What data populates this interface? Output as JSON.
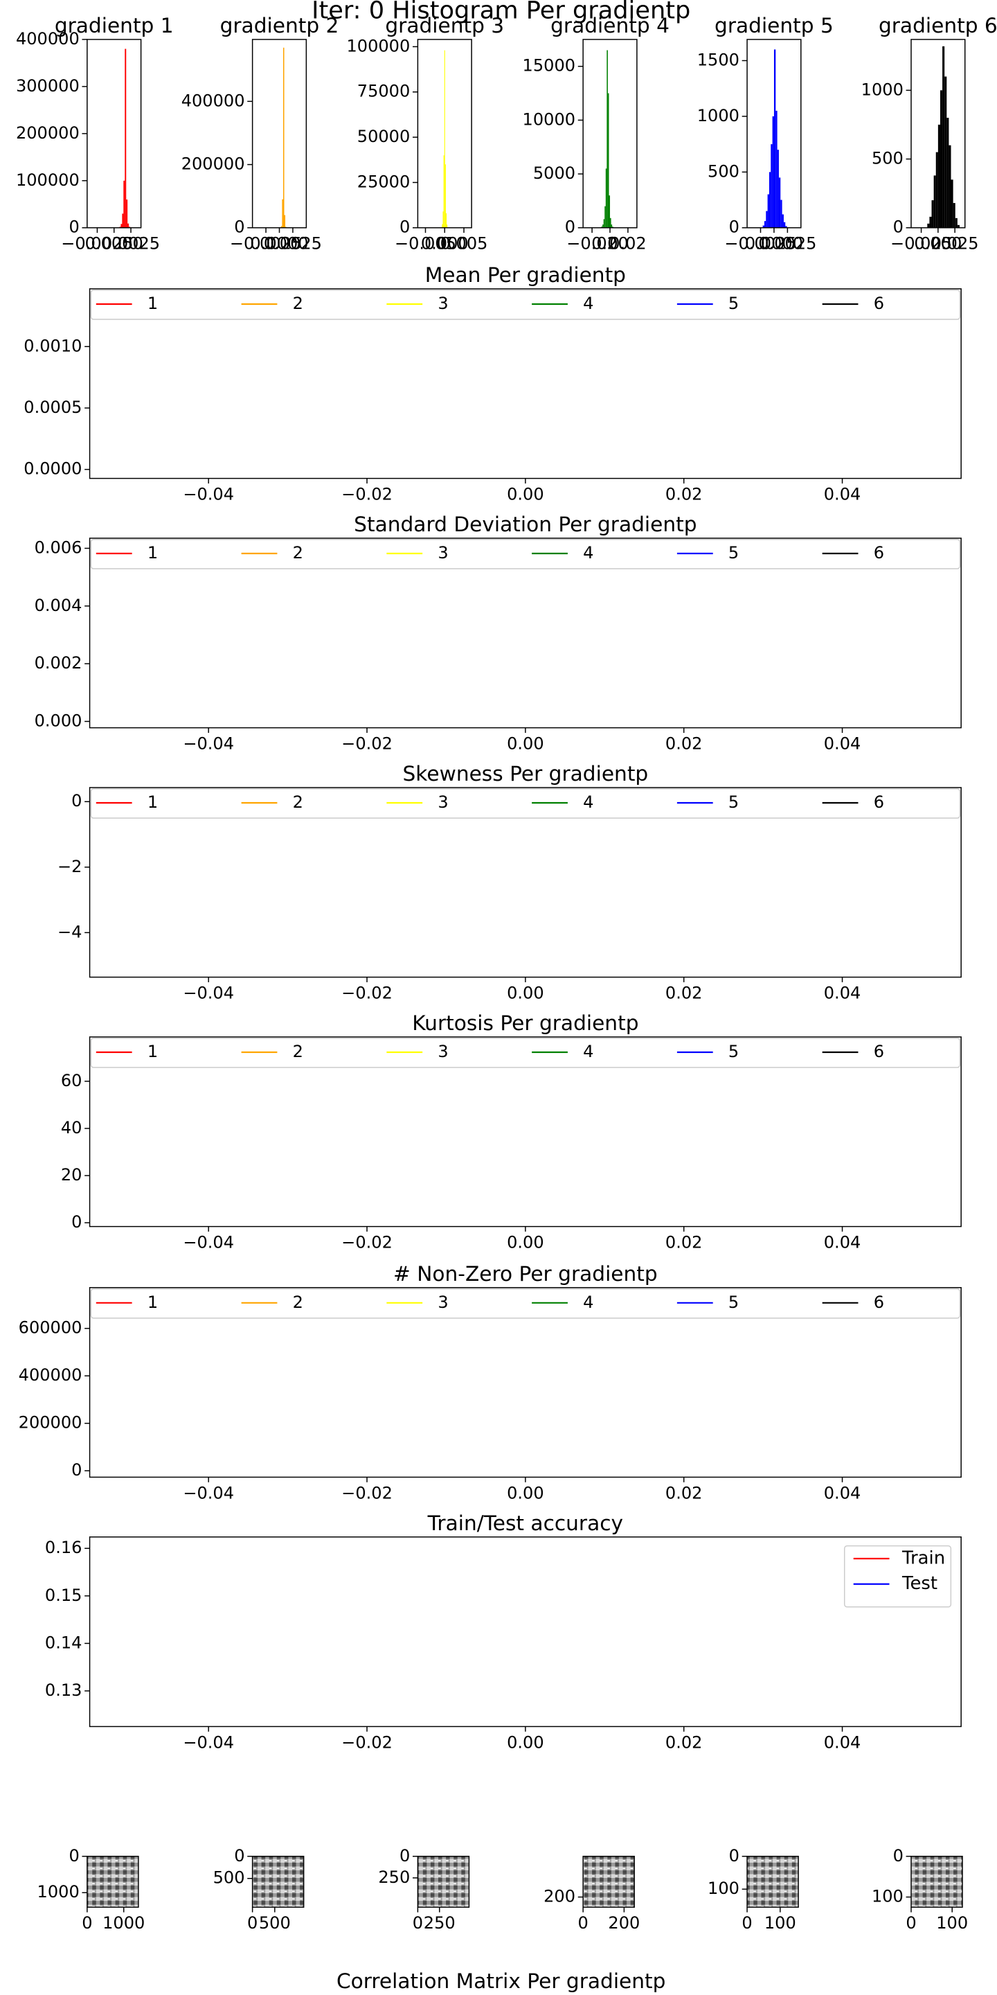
{
  "title": "Iter: 0 Histogram Per gradientp",
  "correlation_title": "Correlation Matrix Per gradientp",
  "chart_data": [
    {
      "type": "histogram",
      "title": "gradientp 1",
      "color": "#ff0000",
      "bins": [
        0,
        0.0002,
        0.0004,
        0.0006,
        0.0008,
        0.001,
        0.0012,
        0.0014,
        0.0016,
        0.0018,
        0.002,
        0.0022,
        0.0024,
        0.0026,
        0.0028,
        0.003
      ],
      "counts": [
        30,
        80,
        200,
        600,
        2000,
        8000,
        30000,
        100000,
        380000,
        60000,
        9000,
        2000,
        500,
        150,
        40
      ],
      "xlim": [
        -0.004,
        0.004
      ],
      "xticks": [
        {
          "value": -0.0025,
          "label": "−0.0025"
        },
        {
          "value": 0,
          "label": "0.0000"
        },
        {
          "value": 0.0025,
          "label": "0.0025"
        }
      ],
      "ylim": [
        0,
        400000
      ],
      "yticks": [
        0,
        100000,
        200000,
        300000,
        400000
      ]
    },
    {
      "type": "histogram",
      "title": "gradientp 2",
      "color": "#ffa500",
      "bins": [
        -0.0005,
        -0.0003,
        -0.0001,
        0.0001,
        0.0003,
        0.0005,
        0.0007,
        0.0009,
        0.0011,
        0.0013,
        0.0015,
        0.0017,
        0.0019,
        0.0021,
        0.0023,
        0.0025
      ],
      "counts": [
        20,
        60,
        200,
        800,
        5000,
        90000,
        570000,
        40000,
        3000,
        500,
        100,
        30,
        10,
        5,
        2
      ],
      "xlim": [
        -0.005,
        0.005
      ],
      "xticks": [
        {
          "value": -0.0025,
          "label": "−0.0025"
        },
        {
          "value": 0,
          "label": "0.0000"
        },
        {
          "value": 0.0025,
          "label": "0.0025"
        }
      ],
      "ylim": [
        0,
        596000
      ],
      "yticks": [
        0,
        200000,
        400000
      ]
    },
    {
      "type": "histogram",
      "title": "gradientp 3",
      "color": "#ffff00",
      "bins": [
        -0.0015,
        -0.0013,
        -0.0011,
        -0.0009,
        -0.0007,
        -0.0005,
        -0.0003,
        -0.0001,
        0.0001,
        0.0003,
        0.0005,
        0.0007,
        0.0009,
        0.0011,
        0.0013,
        0.0015
      ],
      "counts": [
        5,
        20,
        80,
        400,
        2000,
        9000,
        40000,
        98000,
        35000,
        8000,
        1800,
        350,
        70,
        15,
        4
      ],
      "xlim": [
        -0.007,
        0.007
      ],
      "xticks": [
        {
          "value": -0.005,
          "label": "−0.005"
        },
        {
          "value": 0,
          "label": "0.000"
        },
        {
          "value": 0.005,
          "label": "0.005"
        }
      ],
      "ylim": [
        0,
        104000
      ],
      "yticks": [
        0,
        25000,
        50000,
        75000,
        100000
      ]
    },
    {
      "type": "histogram",
      "title": "gradientp 4",
      "color": "#008000",
      "bins": [
        -0.012,
        -0.0108,
        -0.0096,
        -0.0084,
        -0.0072,
        -0.006,
        -0.0048,
        -0.0036,
        -0.0024,
        -0.0012,
        0,
        0.0012,
        0.0024,
        0.0036,
        0.0048,
        0.006
      ],
      "counts": [
        20,
        50,
        120,
        300,
        800,
        2000,
        5500,
        16500,
        12500,
        3000,
        900,
        300,
        100,
        40,
        10
      ],
      "xlim": [
        -0.03,
        0.03
      ],
      "xticks": [
        {
          "value": -0.02,
          "label": "−0.02"
        },
        {
          "value": 0,
          "label": "0.00"
        },
        {
          "value": 0.02,
          "label": "0.02"
        }
      ],
      "ylim": [
        0,
        17500
      ],
      "yticks": [
        0,
        5000,
        10000,
        15000
      ]
    },
    {
      "type": "histogram",
      "title": "gradientp 5",
      "color": "#0000ff",
      "bins": [
        -0.0021,
        -0.0018,
        -0.0015,
        -0.0012,
        -0.0009,
        -0.0006,
        -0.0003,
        0,
        0.0003,
        0.0006,
        0.0009,
        0.0012,
        0.0015,
        0.0018,
        0.0021,
        0.0024
      ],
      "counts": [
        20,
        60,
        150,
        300,
        500,
        750,
        1000,
        1600,
        1050,
        700,
        450,
        250,
        120,
        50,
        15
      ],
      "xlim": [
        -0.005,
        0.005
      ],
      "xticks": [
        {
          "value": -0.0025,
          "label": "−0.0025"
        },
        {
          "value": 0,
          "label": "0.0000"
        },
        {
          "value": 0.0025,
          "label": "0.0025"
        }
      ],
      "ylim": [
        0,
        1690
      ],
      "yticks": [
        0,
        500,
        1000,
        1500
      ]
    },
    {
      "type": "histogram",
      "title": "gradientp 6",
      "color": "#000000",
      "bins": [
        -0.016,
        -0.0128,
        -0.0096,
        -0.0064,
        -0.0032,
        0,
        0.0032,
        0.0064,
        0.0096,
        0.0128,
        0.016,
        0.0192,
        0.0224,
        0.0256,
        0.0288,
        0.032
      ],
      "counts": [
        30,
        80,
        200,
        380,
        550,
        750,
        1000,
        1320,
        1100,
        800,
        600,
        350,
        180,
        70,
        20
      ],
      "xlim": [
        -0.04,
        0.04
      ],
      "xticks": [
        {
          "value": -0.025,
          "label": "−0.025"
        },
        {
          "value": 0,
          "label": "0.000"
        },
        {
          "value": 0.025,
          "label": "0.025"
        }
      ],
      "ylim": [
        0,
        1370
      ],
      "yticks": [
        0,
        500,
        1000
      ]
    },
    {
      "type": "line",
      "title": "Mean Per gradientp",
      "legend": "top",
      "series": [
        {
          "name": "1",
          "color": "#ff0000"
        },
        {
          "name": "2",
          "color": "#ffa500"
        },
        {
          "name": "3",
          "color": "#ffff00"
        },
        {
          "name": "4",
          "color": "#008000"
        },
        {
          "name": "5",
          "color": "#0000ff"
        },
        {
          "name": "6",
          "color": "#000000"
        }
      ],
      "xlim": [
        -0.055,
        0.055
      ],
      "xticks": [
        {
          "value": -0.04,
          "label": "−0.04"
        },
        {
          "value": -0.02,
          "label": "−0.02"
        },
        {
          "value": 0,
          "label": "0.00"
        },
        {
          "value": 0.02,
          "label": "0.02"
        },
        {
          "value": 0.04,
          "label": "0.04"
        }
      ],
      "ylim": [
        -7.3e-05,
        0.00147
      ],
      "yticks": [
        {
          "value": 0,
          "label": "0.0000"
        },
        {
          "value": 0.0005,
          "label": "0.0005"
        },
        {
          "value": 0.001,
          "label": "0.0010"
        }
      ]
    },
    {
      "type": "line",
      "title": "Standard Deviation Per gradientp",
      "legend": "top",
      "series": [
        {
          "name": "1",
          "color": "#ff0000"
        },
        {
          "name": "2",
          "color": "#ffa500"
        },
        {
          "name": "3",
          "color": "#ffff00"
        },
        {
          "name": "4",
          "color": "#008000"
        },
        {
          "name": "5",
          "color": "#0000ff"
        },
        {
          "name": "6",
          "color": "#000000"
        }
      ],
      "xlim": [
        -0.055,
        0.055
      ],
      "xticks": [
        {
          "value": -0.04,
          "label": "−0.04"
        },
        {
          "value": -0.02,
          "label": "−0.02"
        },
        {
          "value": 0,
          "label": "0.00"
        },
        {
          "value": 0.02,
          "label": "0.02"
        },
        {
          "value": 0.04,
          "label": "0.04"
        }
      ],
      "ylim": [
        -0.00022,
        0.00635
      ],
      "yticks": [
        {
          "value": 0,
          "label": "0.000"
        },
        0.002,
        0.004,
        0.006
      ]
    },
    {
      "type": "line",
      "title": "Skewness Per gradientp",
      "legend": "top",
      "series": [
        {
          "name": "1",
          "color": "#ff0000"
        },
        {
          "name": "2",
          "color": "#ffa500"
        },
        {
          "name": "3",
          "color": "#ffff00"
        },
        {
          "name": "4",
          "color": "#008000"
        },
        {
          "name": "5",
          "color": "#0000ff"
        },
        {
          "name": "6",
          "color": "#000000"
        }
      ],
      "xlim": [
        -0.055,
        0.055
      ],
      "xticks": [
        {
          "value": -0.04,
          "label": "−0.04"
        },
        {
          "value": -0.02,
          "label": "−0.02"
        },
        {
          "value": 0,
          "label": "0.00"
        },
        {
          "value": 0.02,
          "label": "0.02"
        },
        {
          "value": 0.04,
          "label": "0.04"
        }
      ],
      "ylim": [
        -5.36,
        0.43
      ],
      "yticks": [
        0,
        {
          "value": -2,
          "label": "−2"
        },
        {
          "value": -4,
          "label": "−4"
        }
      ]
    },
    {
      "type": "line",
      "title": "Kurtosis Per gradientp",
      "legend": "top",
      "series": [
        {
          "name": "1",
          "color": "#ff0000"
        },
        {
          "name": "2",
          "color": "#ffa500"
        },
        {
          "name": "3",
          "color": "#ffff00"
        },
        {
          "name": "4",
          "color": "#008000"
        },
        {
          "name": "5",
          "color": "#0000ff"
        },
        {
          "name": "6",
          "color": "#000000"
        }
      ],
      "xlim": [
        -0.055,
        0.055
      ],
      "xticks": [
        {
          "value": -0.04,
          "label": "−0.04"
        },
        {
          "value": -0.02,
          "label": "−0.02"
        },
        {
          "value": 0,
          "label": "0.00"
        },
        {
          "value": 0.02,
          "label": "0.02"
        },
        {
          "value": 0.04,
          "label": "0.04"
        }
      ],
      "ylim": [
        -1.6,
        78.8
      ],
      "yticks": [
        0,
        20,
        40,
        60
      ]
    },
    {
      "type": "line",
      "title": "# Non-Zero Per gradientp",
      "legend": "top",
      "series": [
        {
          "name": "1",
          "color": "#ff0000"
        },
        {
          "name": "2",
          "color": "#ffa500"
        },
        {
          "name": "3",
          "color": "#ffff00"
        },
        {
          "name": "4",
          "color": "#008000"
        },
        {
          "name": "5",
          "color": "#0000ff"
        },
        {
          "name": "6",
          "color": "#000000"
        }
      ],
      "xlim": [
        -0.055,
        0.055
      ],
      "xticks": [
        {
          "value": -0.04,
          "label": "−0.04"
        },
        {
          "value": -0.02,
          "label": "−0.02"
        },
        {
          "value": 0,
          "label": "0.00"
        },
        {
          "value": 0.02,
          "label": "0.02"
        },
        {
          "value": 0.04,
          "label": "0.04"
        }
      ],
      "ylim": [
        -27000,
        772000
      ],
      "yticks": [
        0,
        200000,
        400000,
        600000
      ]
    },
    {
      "type": "line",
      "title": "Train/Test accuracy",
      "legend": "upper right",
      "series": [
        {
          "name": "Train",
          "color": "#ff0000"
        },
        {
          "name": "Test",
          "color": "#0000ff"
        }
      ],
      "xlim": [
        -0.055,
        0.055
      ],
      "xticks": [
        {
          "value": -0.04,
          "label": "−0.04"
        },
        {
          "value": -0.02,
          "label": "−0.02"
        },
        {
          "value": 0,
          "label": "0.00"
        },
        {
          "value": 0.02,
          "label": "0.02"
        },
        {
          "value": 0.04,
          "label": "0.04"
        }
      ],
      "ylim": [
        0.1225,
        0.1624
      ],
      "yticks": [
        0.13,
        0.14,
        0.15,
        0.16
      ]
    },
    {
      "type": "heatmap",
      "xlim": [
        0,
        1400
      ],
      "ylim": [
        1400,
        0
      ],
      "xticks": [
        0,
        1000
      ],
      "yticks": [
        0,
        1000
      ]
    },
    {
      "type": "heatmap",
      "xlim": [
        0,
        1150
      ],
      "ylim": [
        1150,
        0
      ],
      "xticks": [
        0,
        500
      ],
      "yticks": [
        0,
        500
      ]
    },
    {
      "type": "heatmap",
      "xlim": [
        0,
        590
      ],
      "ylim": [
        590,
        0
      ],
      "xticks": [
        0,
        250
      ],
      "yticks": [
        0,
        250
      ]
    },
    {
      "type": "heatmap",
      "xlim": [
        0,
        250
      ],
      "ylim": [
        250,
        0
      ],
      "xticks": [
        0,
        200
      ],
      "yticks": [
        200
      ]
    },
    {
      "type": "heatmap",
      "xlim": [
        0,
        155
      ],
      "ylim": [
        155,
        0
      ],
      "xticks": [
        0,
        100
      ],
      "yticks": [
        0,
        100
      ]
    },
    {
      "type": "heatmap",
      "xlim": [
        0,
        125
      ],
      "ylim": [
        125,
        0
      ],
      "xticks": [
        0,
        100
      ],
      "yticks": [
        0,
        100
      ]
    }
  ]
}
